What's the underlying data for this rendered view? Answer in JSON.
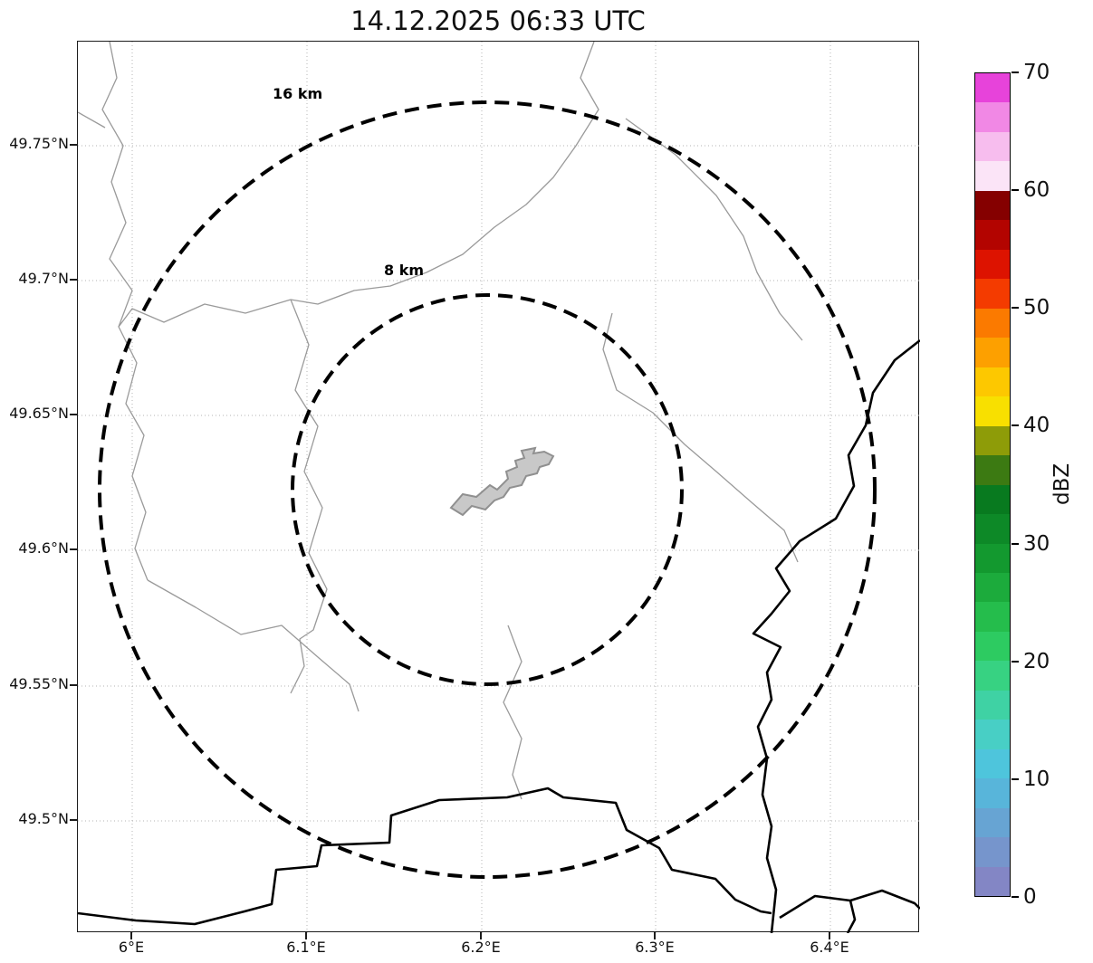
{
  "title": "14.12.2025 06:33 UTC",
  "map": {
    "x_ticks": [
      "6°E",
      "6.1°E",
      "6.2°E",
      "6.3°E",
      "6.4°E"
    ],
    "y_ticks": [
      "49.75°N",
      "49.7°N",
      "49.65°N",
      "49.6°N",
      "49.55°N",
      "49.5°N"
    ],
    "range_rings": [
      {
        "label": "16 km",
        "radius_km": 16
      },
      {
        "label": "8 km",
        "radius_km": 8
      }
    ]
  },
  "colorbar": {
    "label": "dBZ",
    "min": 0,
    "max": 70,
    "ticks": [
      "70",
      "60",
      "50",
      "40",
      "30",
      "20",
      "10",
      "0"
    ],
    "colors_bottom_to_top": [
      "#8386c5",
      "#7695cc",
      "#67a4d3",
      "#58b5da",
      "#4ec5dc",
      "#48cfc5",
      "#3fd2a4",
      "#37d282",
      "#2dcb61",
      "#25bd4c",
      "#1cab3c",
      "#13992f",
      "#0d8927",
      "#087a1f",
      "#3c7a12",
      "#8e9c08",
      "#f8e000",
      "#fdc800",
      "#fda000",
      "#fb7a00",
      "#f43b00",
      "#dd1300",
      "#b30400",
      "#850000",
      "#fbe4f7",
      "#f7bdee",
      "#f188e5",
      "#e743da"
    ]
  },
  "chart_data": {
    "type": "heatmap",
    "title": "14.12.2025 06:33 UTC",
    "colorbar_label": "dBZ",
    "colorbar_range": [
      0,
      70
    ],
    "colorbar_tick_values": [
      0,
      10,
      20,
      30,
      40,
      50,
      60,
      70
    ],
    "x_axis_ticks": [
      "6°E",
      "6.1°E",
      "6.2°E",
      "6.3°E",
      "6.4°E"
    ],
    "y_axis_ticks": [
      "49.75°N",
      "49.7°N",
      "49.65°N",
      "49.6°N",
      "49.55°N",
      "49.5°N"
    ],
    "range_rings_km": [
      8,
      16
    ]
  }
}
